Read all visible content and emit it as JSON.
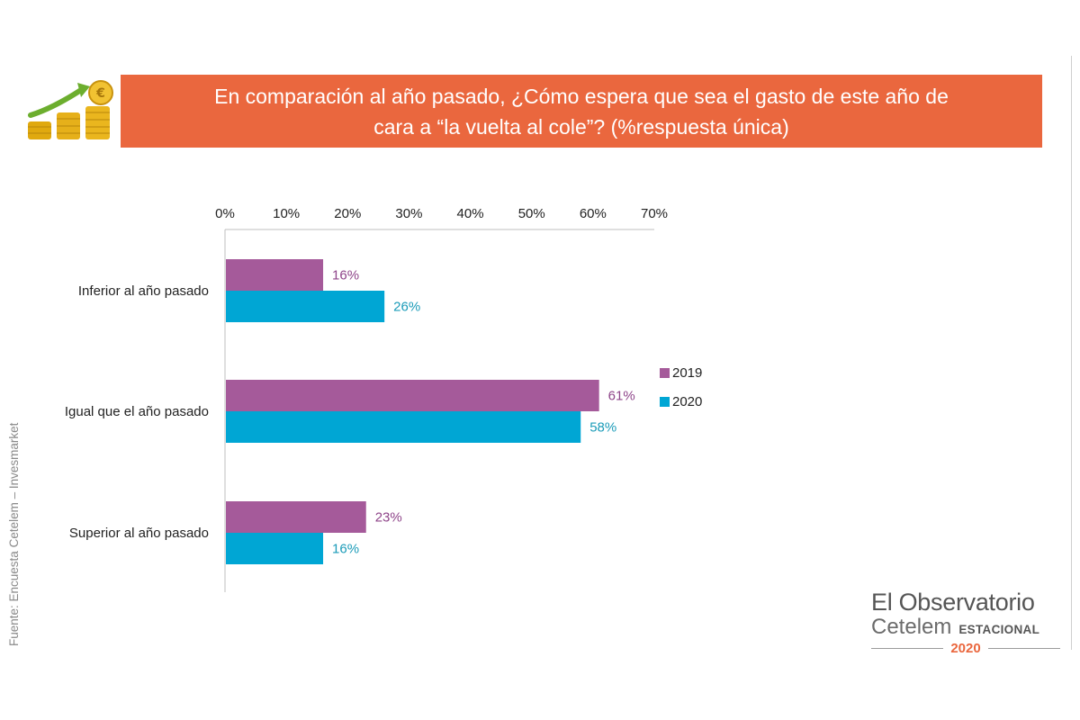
{
  "title": "En comparación al año pasado, ¿Cómo espera que sea el gasto de este año de\ncara a “la vuelta al cole”? (%respuesta única)",
  "source": "Fuente: Encuesta Cetelem – Invesmarket",
  "brand": {
    "line1": "El Observatorio",
    "line2": "Cetelem",
    "tag": "ESTACIONAL",
    "year": "2020"
  },
  "colors": {
    "banner": "#ea673e",
    "series_2019": "#a55a9a",
    "series_2020": "#00a6d4",
    "label_2019": "#8e4489",
    "label_2020": "#1a9bb8"
  },
  "icons": {
    "header": "coins-growth-arrow-icon"
  },
  "chart_data": {
    "type": "bar",
    "orientation": "horizontal",
    "title": "",
    "xlabel": "",
    "ylabel": "",
    "xlim": [
      0,
      70
    ],
    "x_ticks": [
      "0%",
      "10%",
      "20%",
      "30%",
      "40%",
      "50%",
      "60%",
      "70%"
    ],
    "x_tick_values": [
      0,
      10,
      20,
      30,
      40,
      50,
      60,
      70
    ],
    "grid": false,
    "legend_position": "right",
    "categories": [
      "Inferior al año pasado",
      "Igual que el año pasado",
      "Superior al año pasado"
    ],
    "series": [
      {
        "name": "2019",
        "values": [
          16,
          61,
          23
        ],
        "labels": [
          "16%",
          "61%",
          "23%"
        ]
      },
      {
        "name": "2020",
        "values": [
          26,
          58,
          16
        ],
        "labels": [
          "26%",
          "58%",
          "16%"
        ]
      }
    ]
  }
}
